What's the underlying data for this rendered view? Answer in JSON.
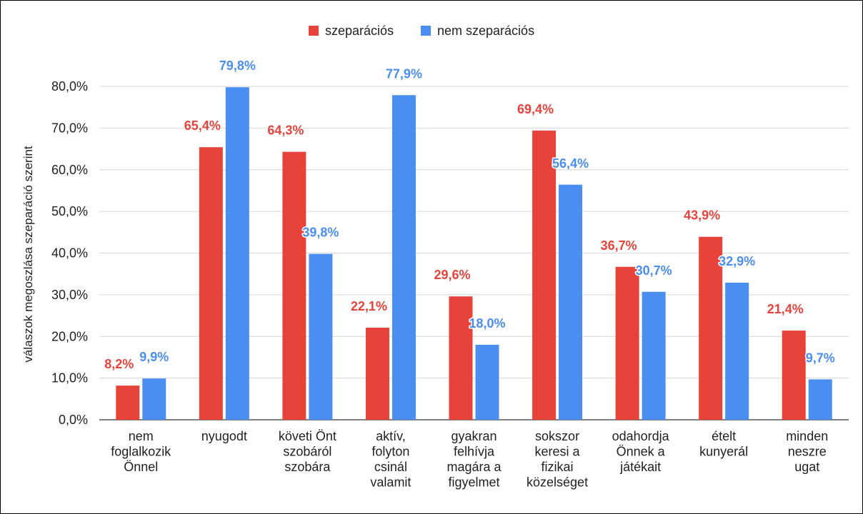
{
  "chart_data": {
    "type": "bar",
    "title": "",
    "xlabel": "",
    "ylabel": "válaszok megoszlása szeparáció szerint",
    "ylim": [
      0,
      80
    ],
    "yticks": [
      0,
      10,
      20,
      30,
      40,
      50,
      60,
      70,
      80
    ],
    "ytick_labels": [
      "0,0%",
      "10,0%",
      "20,0%",
      "30,0%",
      "40,0%",
      "50,0%",
      "60,0%",
      "70,0%",
      "80,0%"
    ],
    "grid": true,
    "legend_position": "top-center",
    "categories": [
      [
        "nem",
        "foglalkozik",
        "Önnel"
      ],
      [
        "nyugodt"
      ],
      [
        "követi Önt",
        "szobáról",
        "szobára"
      ],
      [
        "aktív,",
        "folyton",
        "csinál",
        "valamit"
      ],
      [
        "gyakran",
        "felhívja",
        "magára a",
        "figyelmet"
      ],
      [
        "sokszor",
        "keresi a",
        "fizikai",
        "közelséget"
      ],
      [
        "odahordja",
        "Önnek a",
        "játékait"
      ],
      [
        "ételt",
        "kunyerál"
      ],
      [
        "minden",
        "neszre",
        "ugat"
      ]
    ],
    "series": [
      {
        "name": "szeparációs",
        "color": "#e8433a",
        "values": [
          8.2,
          65.4,
          64.3,
          22.1,
          29.6,
          69.4,
          36.7,
          43.9,
          21.4
        ],
        "labels": [
          "8,2%",
          "65,4%",
          "64,3%",
          "22,1%",
          "29,6%",
          "69,4%",
          "36,7%",
          "43,9%",
          "21,4%"
        ]
      },
      {
        "name": "nem szeparációs",
        "color": "#4a8ef2",
        "values": [
          9.9,
          79.8,
          39.8,
          77.9,
          18.0,
          56.4,
          30.7,
          32.9,
          9.7
        ],
        "labels": [
          "9,9%",
          "79,8%",
          "39,8%",
          "77,9%",
          "18,0%",
          "56,4%",
          "30,7%",
          "32,9%",
          "9,7%"
        ]
      }
    ]
  }
}
